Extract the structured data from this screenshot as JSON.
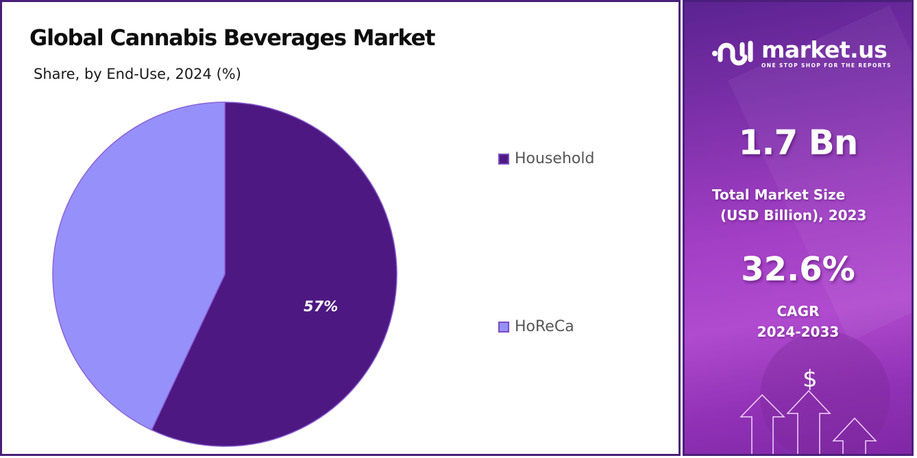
{
  "title": "Global Cannabis Beverages Market",
  "subtitle": "Share, by End-Use, 2024 (%)",
  "chart_data": {
    "type": "pie",
    "title": "Global Cannabis Beverages Market",
    "subtitle": "Share, by End-Use, 2024 (%)",
    "categories": [
      "Household",
      "HoReCa"
    ],
    "values": [
      57,
      43
    ],
    "colors": [
      "#4e1882",
      "#9690fb"
    ],
    "data_labels": [
      "57%",
      ""
    ],
    "legend_position": "right",
    "start_angle": "12 o'clock, clockwise"
  },
  "legend": [
    {
      "label": "Household",
      "color": "#4e1882"
    },
    {
      "label": "HoReCa",
      "color": "#9690fb"
    }
  ],
  "pie_label": "57%",
  "sidebar": {
    "brand": {
      "name": "market.us",
      "tagline": "ONE STOP SHOP FOR THE REPORTS"
    },
    "market_size": {
      "value": "1.7 Bn",
      "label_line1": "Total Market Size",
      "label_line2": "(USD Billion), 2023"
    },
    "cagr": {
      "value": "32.6%",
      "label_line1": "CAGR",
      "label_line2": "2024-2033"
    },
    "icon_symbol": "$"
  },
  "colors": {
    "border": "#4a1f7a",
    "accent_dark": "#4e1882",
    "accent_light": "#9690fb",
    "sidebar_gradient_start": "#5b2390",
    "sidebar_gradient_mid": "#b04bcf"
  }
}
